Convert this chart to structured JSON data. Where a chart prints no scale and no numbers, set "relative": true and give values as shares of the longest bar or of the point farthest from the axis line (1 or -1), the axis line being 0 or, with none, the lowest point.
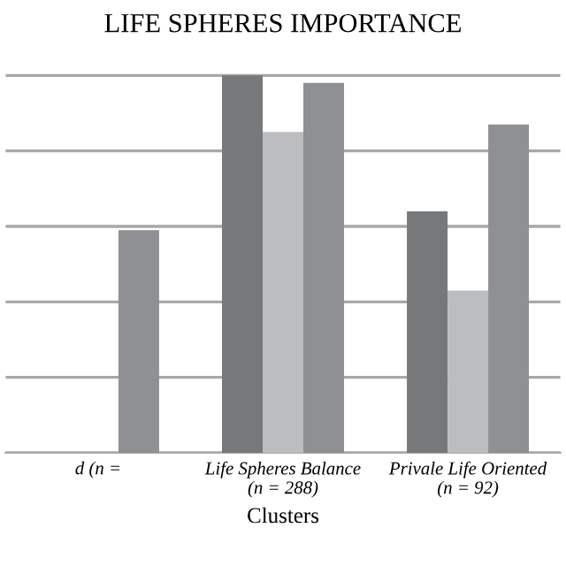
{
  "chart_data": {
    "type": "bar",
    "title": "LIFE SPHERES IMPORTANCE",
    "xlabel": "Clusters",
    "categories": [
      "d (n =",
      "Life Spheres Balance\n(n = 288)",
      "Privale Life Oriented\n(n = 92)"
    ],
    "relative": true,
    "grid": "y",
    "series": [
      {
        "color": "#77787a",
        "values": [
          null,
          1,
          0.64
        ]
      },
      {
        "color": "#bcbdbf",
        "values": [
          null,
          0.85,
          0.43
        ]
      },
      {
        "color": "#8e9093",
        "values": [
          0.59,
          0.98,
          0.87
        ]
      }
    ]
  }
}
